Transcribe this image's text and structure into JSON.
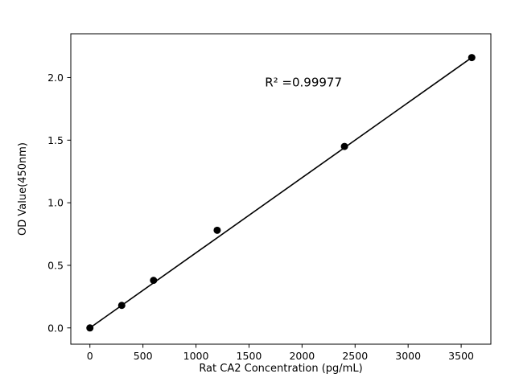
{
  "figure": {
    "background": "#ffffff"
  },
  "chart_data": {
    "type": "scatter",
    "title": "",
    "xlabel": "Rat CA2 Concentration (pg/mL)",
    "ylabel": "OD Value(450nm)",
    "x": [
      0,
      300,
      600,
      1200,
      2400,
      3600
    ],
    "y": [
      0.0,
      0.18,
      0.38,
      0.78,
      1.45,
      2.16
    ],
    "fit_line": {
      "x1": 0,
      "y1": 0.0,
      "x2": 3600,
      "y2": 2.16
    },
    "annotation": {
      "text": "R² =0.99977",
      "x": 1650,
      "y": 1.93
    },
    "xlim": [
      -180,
      3780
    ],
    "ylim": [
      -0.13,
      2.35
    ],
    "xticks": [
      0,
      500,
      1000,
      1500,
      2000,
      2500,
      3000,
      3500
    ],
    "xtick_labels": [
      "0",
      "500",
      "1000",
      "1500",
      "2000",
      "2500",
      "3000",
      "3500"
    ],
    "yticks": [
      0.0,
      0.5,
      1.0,
      1.5,
      2.0
    ],
    "ytick_labels": [
      "0.0",
      "0.5",
      "1.0",
      "1.5",
      "2.0"
    ],
    "grid": false,
    "legend": null,
    "marker_color": "#000000",
    "line_color": "#000000",
    "axis_color": "#000000"
  }
}
